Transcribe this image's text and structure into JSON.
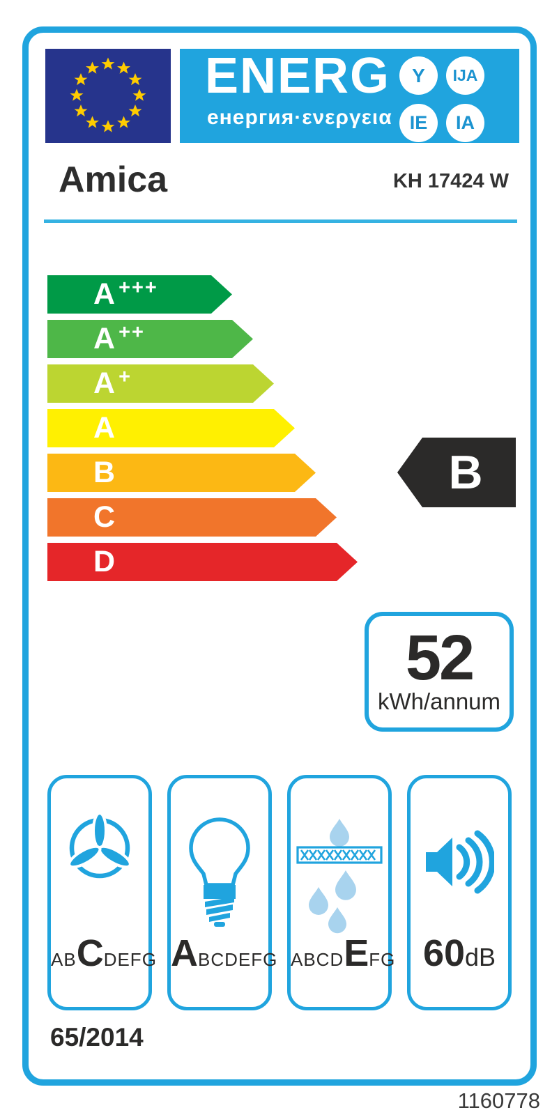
{
  "colors": {
    "accent_blue": "#20A4DE",
    "eu_flag_blue": "#26348C",
    "star_yellow": "#FFCC00",
    "ink_dark": "#2B2A29",
    "drop_light_blue": "#A8D3EE"
  },
  "header": {
    "logo": {
      "title": "ENERG",
      "subtitle": "енергия·ενεργεια",
      "circles": [
        {
          "label": "Y"
        },
        {
          "label": "IJA"
        },
        {
          "label": "IE"
        },
        {
          "label": "IA"
        }
      ]
    },
    "brand": "Amica",
    "model": "KH 17424 W"
  },
  "scale": {
    "classes": [
      {
        "label": "A",
        "suffix": "+++",
        "color": "#009A47"
      },
      {
        "label": "A",
        "suffix": "++",
        "color": "#4EB748"
      },
      {
        "label": "A",
        "suffix": "+",
        "color": "#BCD531"
      },
      {
        "label": "A",
        "suffix": "",
        "color": "#FFF001"
      },
      {
        "label": "B",
        "suffix": "",
        "color": "#FCB814"
      },
      {
        "label": "C",
        "suffix": "",
        "color": "#F1752B"
      },
      {
        "label": "D",
        "suffix": "",
        "color": "#E52629"
      }
    ],
    "rating": {
      "label": "B",
      "color": "#2B2A29"
    }
  },
  "consumption": {
    "value": "52",
    "unit": "kWh/annum"
  },
  "metrics": {
    "fan": {
      "before": "AB",
      "grade": "C",
      "after": "DEFG"
    },
    "lighting": {
      "before": "",
      "grade": "A",
      "after": "BCDEFG"
    },
    "grease": {
      "before": "ABCD",
      "grade": "E",
      "after": "FG"
    },
    "noise": {
      "value": "60",
      "unit": "dB"
    }
  },
  "footer": {
    "regulation": "65/2014",
    "document_number": "1160778"
  }
}
